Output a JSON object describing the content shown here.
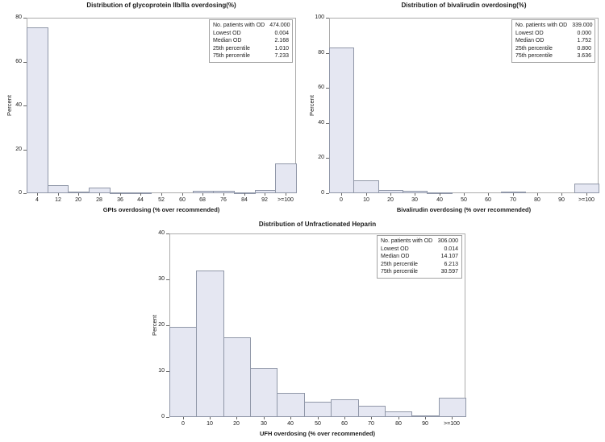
{
  "colors": {
    "background": "#ffffff",
    "bar_fill": "#e5e7f2",
    "bar_border": "#9097a8",
    "frame": "#ababab",
    "tick": "#666666",
    "text": "#1a1a1a",
    "stats_border": "#a3a3a3"
  },
  "stats_column_labels": [
    "No. patients with OD",
    "Lowest OD",
    "Median OD",
    "25th percentile",
    "75th percentile"
  ],
  "chart_data": [
    {
      "type": "bar",
      "title": "Distribution of glycoprotein IIb/IIa overdosing(%)",
      "xlabel": "GPIs overdosing (% over recommended)",
      "ylabel": "Percent",
      "categories": [
        "4",
        "12",
        "20",
        "28",
        "36",
        "44",
        "52",
        "60",
        "68",
        "76",
        "84",
        "92",
        ">=100"
      ],
      "values": [
        75.5,
        3.6,
        0.7,
        2.4,
        0.5,
        0.5,
        0,
        0,
        1.2,
        1.2,
        0.4,
        1.4,
        13.4
      ],
      "ylim": [
        0,
        80
      ],
      "yticks": [
        0,
        20,
        40,
        60,
        80
      ],
      "grid": false,
      "legend_position": "top-right",
      "stats": [
        {
          "label": "No. patients with OD",
          "value": "474.000"
        },
        {
          "label": "Lowest OD",
          "value": "0.004"
        },
        {
          "label": "Median OD",
          "value": "2.168"
        },
        {
          "label": "25th percentile",
          "value": "1.010"
        },
        {
          "label": "75th percentile",
          "value": "7.233"
        }
      ]
    },
    {
      "type": "bar",
      "title": "Distribution of bivalirudin overdosing(%)",
      "xlabel": "Bivalirudin overdosing (% over recommended)",
      "ylabel": "Percent",
      "categories": [
        "0",
        "10",
        "20",
        "30",
        "40",
        "50",
        "60",
        "70",
        "80",
        "90",
        ">=100"
      ],
      "values": [
        83,
        7.5,
        2.0,
        1.4,
        0.4,
        0,
        0,
        0.7,
        0,
        0,
        5.6
      ],
      "ylim": [
        0,
        100
      ],
      "yticks": [
        0,
        20,
        40,
        60,
        80,
        100
      ],
      "grid": false,
      "legend_position": "top-right",
      "stats": [
        {
          "label": "No. patients with OD",
          "value": "339.000"
        },
        {
          "label": "Lowest OD",
          "value": "0.000"
        },
        {
          "label": "Median OD",
          "value": "1.752"
        },
        {
          "label": "25th percentile",
          "value": "0.800"
        },
        {
          "label": "75th percentile",
          "value": "3.636"
        }
      ]
    },
    {
      "type": "bar",
      "title": "Distribution of Unfractionated Heparin",
      "xlabel": "UFH overdosing (% over recommended)",
      "ylabel": "Percent",
      "categories": [
        "0",
        "10",
        "20",
        "30",
        "40",
        "50",
        "60",
        "70",
        "80",
        "90",
        ">=100"
      ],
      "values": [
        19.6,
        32,
        17.3,
        10.7,
        5.2,
        3.4,
        3.8,
        2.4,
        1.3,
        0.3,
        4.2
      ],
      "ylim": [
        0,
        40
      ],
      "yticks": [
        0,
        10,
        20,
        30,
        40
      ],
      "grid": false,
      "legend_position": "top-right",
      "stats": [
        {
          "label": "No. patients with OD",
          "value": "306.000"
        },
        {
          "label": "Lowest OD",
          "value": "0.014"
        },
        {
          "label": "Median OD",
          "value": "14.107"
        },
        {
          "label": "25th percentile",
          "value": "6.213"
        },
        {
          "label": "75th percentile",
          "value": "30.597"
        }
      ]
    }
  ]
}
